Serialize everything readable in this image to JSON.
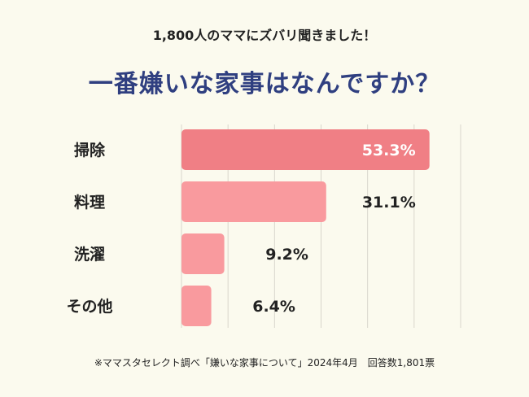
{
  "subtitle": "1,800人のママにズバリ聞きました！",
  "title": "一番嫌いな家事はなんですか？",
  "footnote": "※ママスタセレクト調べ「嫌いな家事について」2024年4月　回答数1,801票",
  "colors": {
    "title": "#2f3f80",
    "bar_highlight": "#f07f85",
    "bar": "#f99a9e",
    "grid": "#d8d6cc",
    "background": "#fbfaee"
  },
  "chart_data": {
    "type": "bar",
    "orientation": "horizontal",
    "categories": [
      "掃除",
      "料理",
      "洗濯",
      "その他"
    ],
    "values": [
      53.3,
      31.1,
      9.2,
      6.4
    ],
    "value_labels": [
      "53.3%",
      "31.1%",
      "9.2%",
      "6.4%"
    ],
    "unit": "%",
    "xlim": [
      0,
      60
    ],
    "grid": true
  }
}
